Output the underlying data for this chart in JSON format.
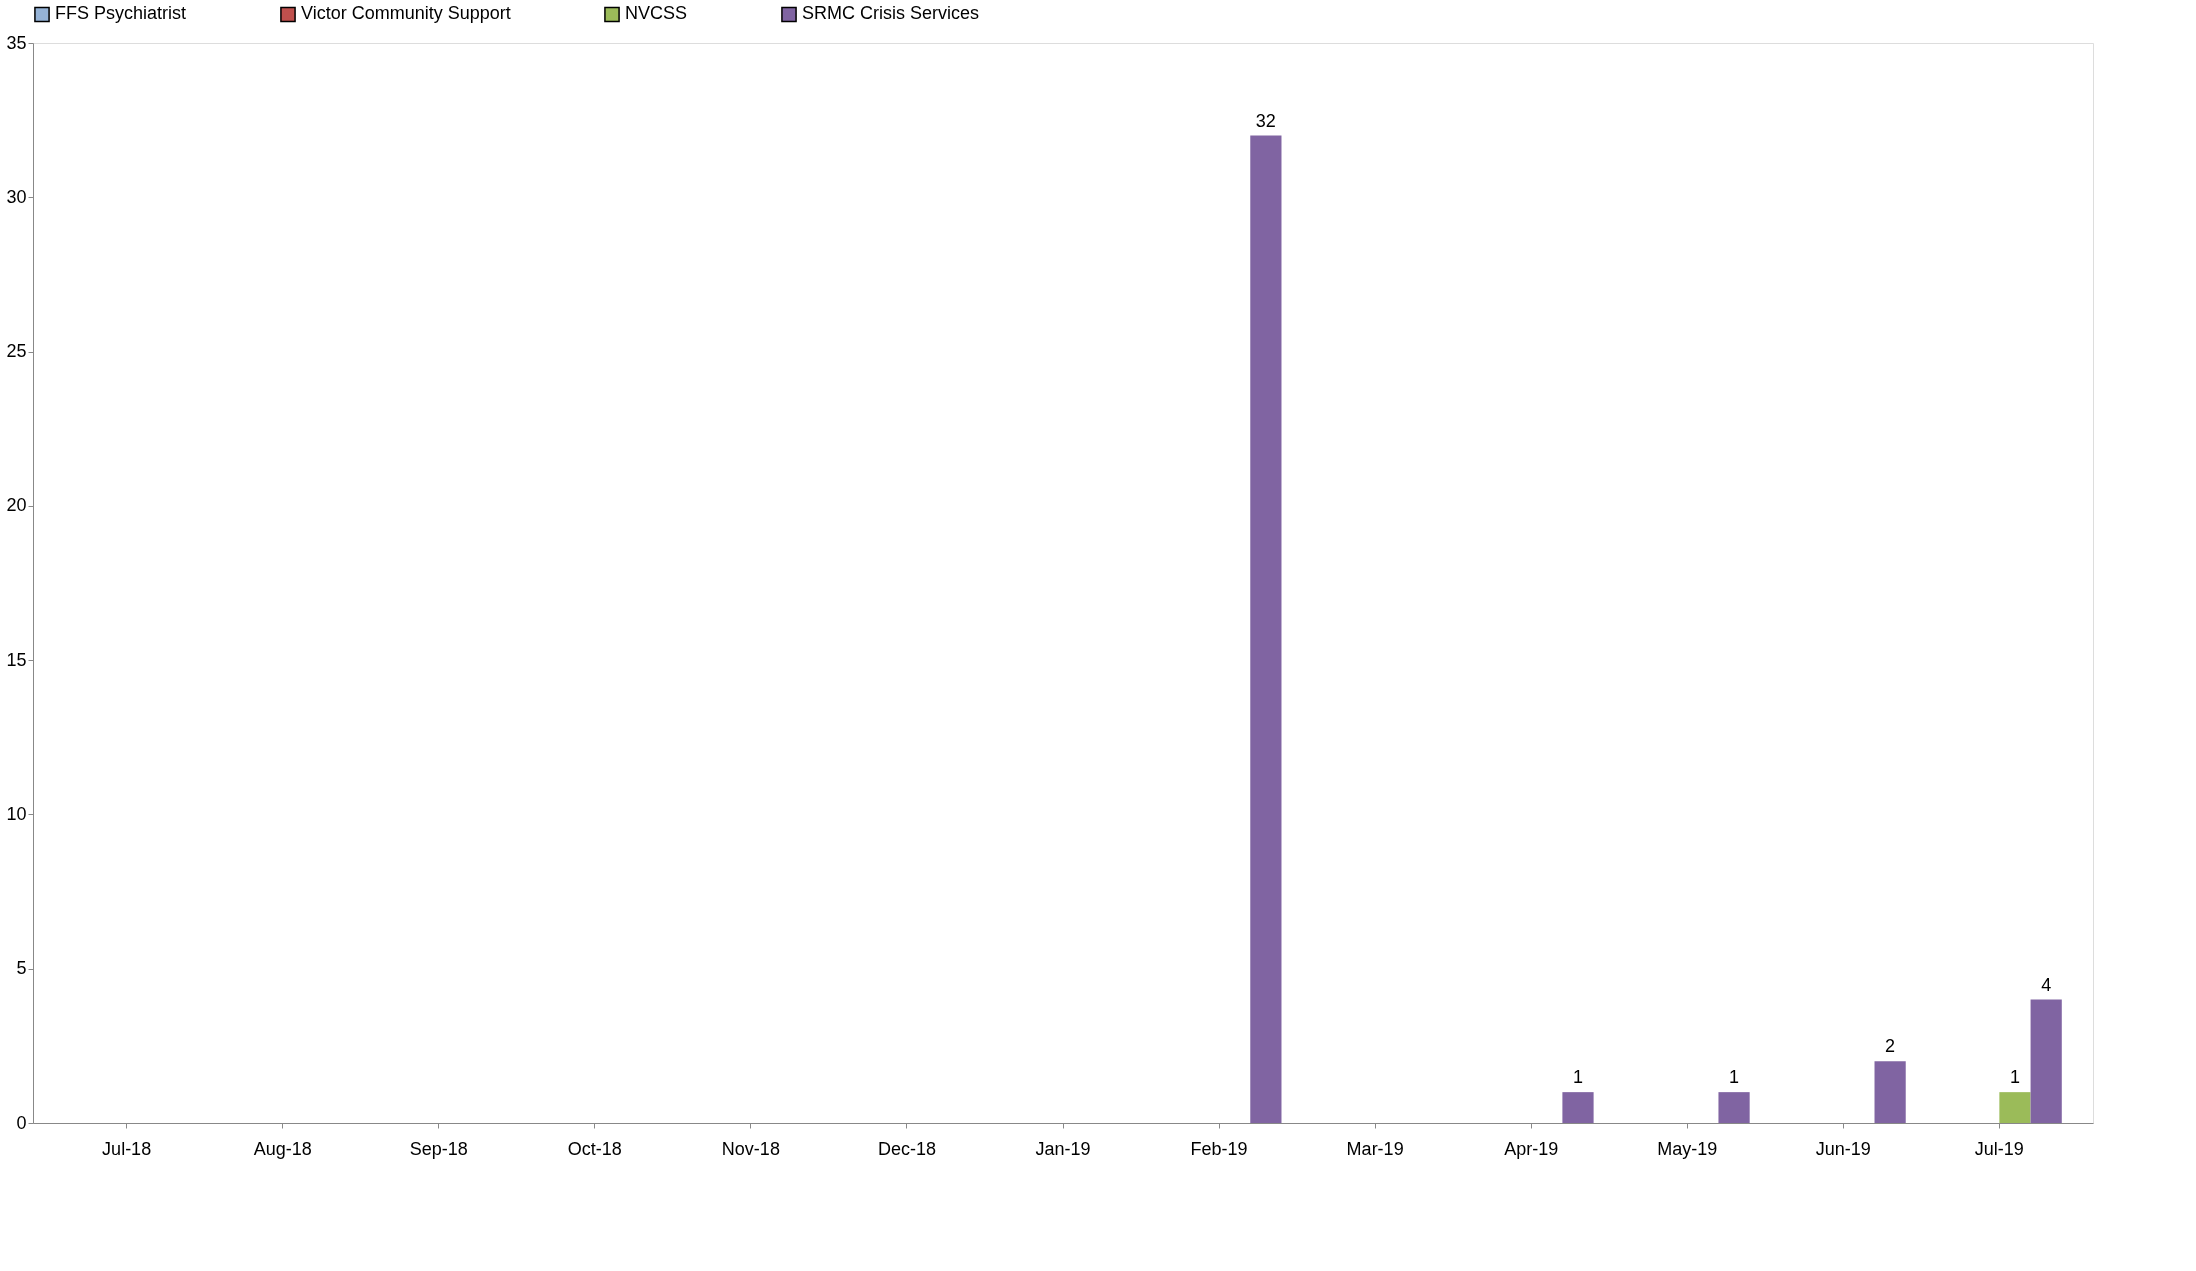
{
  "chart_data": {
    "type": "bar",
    "categories": [
      "Jul-18",
      "Aug-18",
      "Sep-18",
      "Oct-18",
      "Nov-18",
      "Dec-18",
      "Jan-19",
      "Feb-19",
      "Mar-19",
      "Apr-19",
      "May-19",
      "Jun-19",
      "Jul-19"
    ],
    "series": [
      {
        "name": "FFS Psychiatrist",
        "color": "#95b3d7",
        "values": [
          null,
          null,
          null,
          null,
          null,
          null,
          null,
          null,
          null,
          null,
          null,
          null,
          null
        ]
      },
      {
        "name": "Victor Community Support",
        "color": "#c0504d",
        "values": [
          null,
          null,
          null,
          null,
          null,
          null,
          null,
          null,
          null,
          null,
          null,
          null,
          null
        ]
      },
      {
        "name": "NVCSS",
        "color": "#9bbb59",
        "values": [
          null,
          null,
          null,
          null,
          null,
          null,
          null,
          null,
          null,
          null,
          null,
          null,
          1
        ]
      },
      {
        "name": "SRMC Crisis Services",
        "color": "#8064a2",
        "values": [
          null,
          null,
          null,
          null,
          null,
          null,
          null,
          32,
          null,
          1,
          1,
          2,
          4
        ]
      }
    ],
    "ylim": [
      0,
      35
    ],
    "yticks": [
      0,
      5,
      10,
      15,
      20,
      25,
      30,
      35
    ],
    "data_labels": true,
    "grid": false,
    "legend": "top"
  }
}
